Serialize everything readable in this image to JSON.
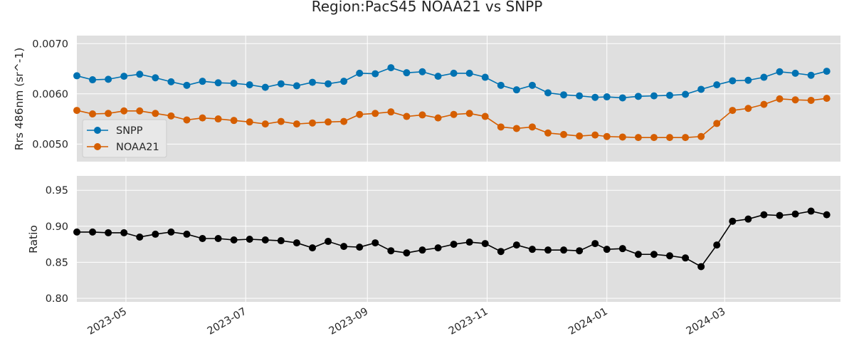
{
  "title": "Region:PacS45 NOAA21 vs SNPP",
  "chart_data": [
    {
      "type": "line",
      "ylabel": "Rrs 486nm (sr^-1)",
      "ylim": [
        0.00465,
        0.00716
      ],
      "yticks": [
        0.005,
        0.006,
        0.007
      ],
      "ytick_labels": [
        "0.0050",
        "0.0060",
        "0.0070"
      ],
      "grid": true,
      "legend": "lower-left",
      "x": [
        "2023-04-06",
        "2023-04-14",
        "2023-04-22",
        "2023-04-30",
        "2023-05-08",
        "2023-05-16",
        "2023-05-24",
        "2023-06-01",
        "2023-06-09",
        "2023-06-17",
        "2023-06-25",
        "2023-07-03",
        "2023-07-11",
        "2023-07-19",
        "2023-07-27",
        "2023-08-04",
        "2023-08-12",
        "2023-08-20",
        "2023-08-28",
        "2023-09-05",
        "2023-09-13",
        "2023-09-21",
        "2023-09-29",
        "2023-10-07",
        "2023-10-15",
        "2023-10-23",
        "2023-10-31",
        "2023-11-08",
        "2023-11-16",
        "2023-11-24",
        "2023-12-02",
        "2023-12-10",
        "2023-12-18",
        "2023-12-26",
        "2024-01-01",
        "2024-01-09",
        "2024-01-17",
        "2024-01-25",
        "2024-02-02",
        "2024-02-10",
        "2024-02-18",
        "2024-02-26",
        "2024-03-05",
        "2024-03-13",
        "2024-03-21",
        "2024-03-29",
        "2024-04-06",
        "2024-04-14",
        "2024-04-22"
      ],
      "series": [
        {
          "name": "SNPP",
          "color": "#0072b2",
          "values": [
            0.00636,
            0.00628,
            0.00629,
            0.00635,
            0.00639,
            0.00632,
            0.00624,
            0.00617,
            0.00625,
            0.00622,
            0.00621,
            0.00618,
            0.00613,
            0.0062,
            0.00616,
            0.00623,
            0.0062,
            0.00625,
            0.00641,
            0.0064,
            0.00652,
            0.00642,
            0.00644,
            0.00635,
            0.00641,
            0.00641,
            0.00633,
            0.00617,
            0.00608,
            0.00617,
            0.00602,
            0.00598,
            0.00596,
            0.00593,
            0.00594,
            0.00592,
            0.00595,
            0.00596,
            0.00597,
            0.00599,
            0.00609,
            0.00618,
            0.00626,
            0.00627,
            0.00633,
            0.00644,
            0.00641,
            0.00637,
            0.00645
          ]
        },
        {
          "name": "NOAA21",
          "color": "#d55e00",
          "values": [
            0.00567,
            0.0056,
            0.00561,
            0.00566,
            0.00566,
            0.00561,
            0.00556,
            0.00548,
            0.00552,
            0.0055,
            0.00547,
            0.00544,
            0.0054,
            0.00545,
            0.0054,
            0.00542,
            0.00544,
            0.00545,
            0.00559,
            0.00561,
            0.00564,
            0.00555,
            0.00558,
            0.00552,
            0.00559,
            0.00561,
            0.00555,
            0.00534,
            0.00531,
            0.00534,
            0.00522,
            0.00519,
            0.00516,
            0.00518,
            0.00515,
            0.00514,
            0.00513,
            0.00513,
            0.00513,
            0.00513,
            0.00515,
            0.00541,
            0.00567,
            0.00571,
            0.00579,
            0.0059,
            0.00588,
            0.00587,
            0.00591
          ]
        }
      ]
    },
    {
      "type": "line",
      "ylabel": "Ratio",
      "ylim": [
        0.795,
        0.97
      ],
      "yticks": [
        0.8,
        0.85,
        0.9,
        0.95
      ],
      "ytick_labels": [
        "0.80",
        "0.85",
        "0.90",
        "0.95"
      ],
      "grid": true,
      "xticks": [
        "2023-05-01",
        "2023-07-01",
        "2023-09-01",
        "2023-11-01",
        "2024-01-01",
        "2024-03-01"
      ],
      "xtick_labels": [
        "2023-05",
        "2023-07",
        "2023-09",
        "2023-11",
        "2024-01",
        "2024-03"
      ],
      "series": [
        {
          "color": "#000000",
          "values": [
            0.892,
            0.892,
            0.891,
            0.891,
            0.885,
            0.889,
            0.892,
            0.889,
            0.883,
            0.883,
            0.881,
            0.882,
            0.881,
            0.88,
            0.877,
            0.87,
            0.879,
            0.872,
            0.871,
            0.877,
            0.866,
            0.863,
            0.867,
            0.87,
            0.875,
            0.878,
            0.876,
            0.865,
            0.874,
            0.868,
            0.867,
            0.867,
            0.866,
            0.876,
            0.868,
            0.869,
            0.861,
            0.861,
            0.859,
            0.856,
            0.844,
            0.874,
            0.907,
            0.91,
            0.916,
            0.915,
            0.917,
            0.921,
            0.916
          ]
        }
      ]
    }
  ]
}
